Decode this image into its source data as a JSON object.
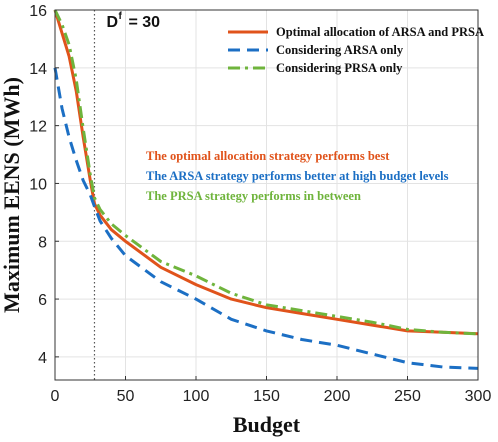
{
  "chart_data": {
    "type": "line",
    "xlabel": "Budget",
    "ylabel": "Maximum EENS (MWh)",
    "xlim": [
      0,
      300
    ],
    "ylim": [
      3.2,
      16
    ],
    "xticks": [
      0,
      50,
      100,
      150,
      200,
      250,
      300
    ],
    "yticks": [
      4,
      6,
      8,
      10,
      12,
      14,
      16
    ],
    "grid": true,
    "legend_position": "top-right",
    "reference_line": {
      "x": 28,
      "label_main": "D",
      "label_sup": "f",
      "label_value": "= 30"
    },
    "series": [
      {
        "name": "Optimal allocation of ARSA and PRSA",
        "color": "#e0531b",
        "style": "solid",
        "x": [
          0,
          5,
          10,
          15,
          20,
          25,
          28,
          32,
          40,
          50,
          75,
          100,
          125,
          150,
          175,
          200,
          225,
          250,
          275,
          300
        ],
        "y": [
          16.0,
          15.2,
          14.4,
          13.2,
          11.6,
          10.1,
          9.3,
          8.9,
          8.4,
          8.0,
          7.1,
          6.5,
          6.0,
          5.7,
          5.5,
          5.3,
          5.1,
          4.9,
          4.85,
          4.8
        ]
      },
      {
        "name": "Considering ARSA only",
        "color": "#1c6fc4",
        "style": "dashed",
        "x": [
          0,
          5,
          10,
          15,
          20,
          25,
          28,
          32,
          40,
          50,
          75,
          100,
          125,
          150,
          175,
          200,
          225,
          250,
          275,
          300
        ],
        "y": [
          14.0,
          12.6,
          11.6,
          10.8,
          10.1,
          9.6,
          9.2,
          8.7,
          8.1,
          7.5,
          6.6,
          6.0,
          5.3,
          4.9,
          4.6,
          4.4,
          4.1,
          3.8,
          3.65,
          3.6
        ]
      },
      {
        "name": "Considering PRSA only",
        "color": "#6fb43c",
        "style": "dashdot",
        "x": [
          0,
          5,
          10,
          15,
          20,
          25,
          28,
          32,
          40,
          50,
          75,
          100,
          125,
          150,
          175,
          200,
          225,
          250,
          275,
          300
        ],
        "y": [
          16.0,
          15.5,
          14.8,
          13.6,
          11.9,
          10.3,
          9.5,
          9.1,
          8.6,
          8.2,
          7.3,
          6.8,
          6.2,
          5.8,
          5.6,
          5.4,
          5.2,
          4.95,
          4.85,
          4.8
        ]
      }
    ],
    "annotations": [
      {
        "text": "The optimal allocation strategy performs best",
        "color": "#e0531b"
      },
      {
        "text": "The ARSA strategy performs better at high budget levels",
        "color": "#1c6fc4"
      },
      {
        "text": "The PRSA strategy performs in between",
        "color": "#6fb43c"
      }
    ]
  }
}
